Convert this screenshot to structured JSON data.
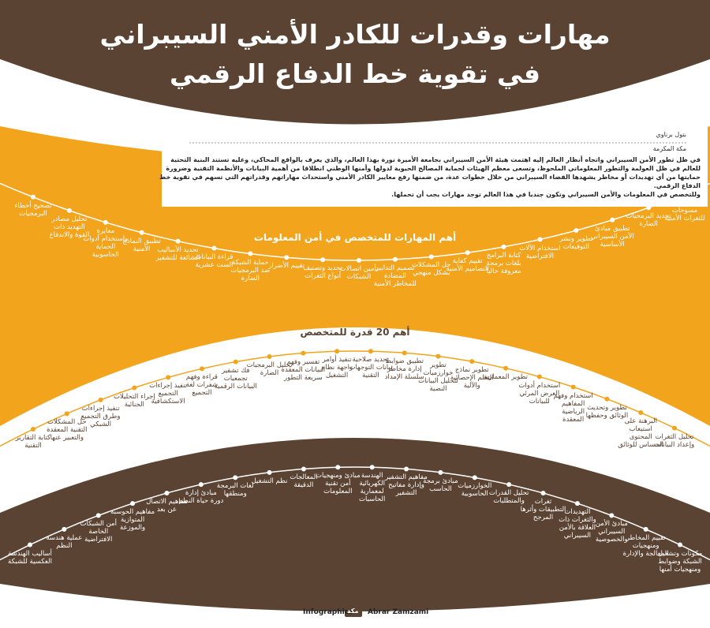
{
  "header": {
    "title_lines": [
      "مهارات وقدرات للكادر الأمني السيبراني",
      "في تقوية خط الدفاع الرقمي"
    ]
  },
  "byline": {
    "author": "بتول برناوي",
    "location": "مكة المكرمة"
  },
  "intro": [
    "في ظل تطور الأمن السيبراني واتجاه أنظار العالم إليه اهتمت هيئة الأمن السيبراني بجامعة الأميرة نورة بهذا العالم، والذي يعرف بالواقع المحاكي، وعليه تستند البنية التحتية للعالم في ظل العولمة والتطور المعلوماتي الملحوظ، وتسعى معظم الهيئات لحماية المصالح الحيوية لدولها وأمنها الوطني انطلاقا من أهمية البيانات والأنظمة التقنية وضرورة حمايتها من أي تهديدات أو مخاطر يشهدها الفضاء السيبراني من خلال خطوات عدة، من ضمنها رفع معايير الكادر الأمني واستحداث مهاراتهم وقدراتهم التي تسهم في تقوية خط الدفاع الرقمي.",
    "وللتخصص في المعلومات والأمن السيبراني وتكون جنديا في هذا العالم توجد مهارات يجب أن تحملها."
  ],
  "sections": [
    {
      "title": "أهم المهارات للمتخصص في أمن المعلومات",
      "items": [
        "كفاءة أداء مسوحات للثغرات الأمنية",
        "تحديد البرمجيات الضارة",
        "تطبيق مبادئ الأمن السيبراني الأساسية",
        "تطوير ونشر التوقيعات",
        "استخدام الآلات الافتراضية",
        "كتابة البرامج بلغات برمجة معروفة حاليا",
        "تقييم كفاية التصاميم الأمنية",
        "حل المشكلات بشكل منهجي",
        "تصميم التدابير المضادة للمخاطر الأمنية",
        "تأمين اتصالات الشبكات",
        "تحديد وتصنيف أنواع الثغرات",
        "تقييم الأضرار",
        "حماية الشبكة ضد البرمجيات الضارة",
        "قراءة البيانات الست عشرية",
        "تحديد الأساليب الشائعة للتشفير",
        "تطبيق النماذج الأمنية",
        "معايرة واستخدام أدوات الحماية الحاسوبية",
        "تحليل مصادر التهديد ذات القوة والاندفاع",
        "تصحيح أخطاء البرمجيات"
      ]
    },
    {
      "title": "أهم 20 قدرة للمتخصص",
      "items": [
        "تحليل الثغرات وإعداد البيانات",
        "البرهنة على استيعاب المحتوى الحساس للوثائق",
        "تطوير وتحديث الوثائق وحفظها",
        "استخدام وفهم المفاهيم الرياضية المعقدة",
        "استخدام أدوات العرض المرئي للبيانات",
        "تطوير المعمارية",
        "تطوير نماذج التعلم الإحصائية والآلية",
        "تطوير خوارزميات لتحليل البيانات النصية",
        "تطبيق ضوابط إدارة مخاطر سلسلة الإمداد",
        "تحديد صلاحية بيانات التوجهات التقنية",
        "تنفيذ أوامر واجهة نظام التشغيل",
        "تفسير وفهم البيانات المعقدة سريعة التطور",
        "تحليل البرمجيات الضارة",
        "فك تشفير تجمعيات البيانات الرقمية",
        "قراءة وفهم شفرات لغة التجميع",
        "تنفيذ إجراءات التجميع الاستكشافية",
        "إجراء التحليلات الجنائية",
        "تنفيذ إجراءات وطرق التجميع الشبكي",
        "حل المشكلات التقنية المعقدة والتعبير عنها",
        "كتابة التقارير التقنية"
      ]
    },
    {
      "title": "أهم 20 معرفة للمتخصص",
      "items": [
        "مكونات وتشغيل الشبكة وضوابط ومنهجيات أمنها",
        "تقييم المخاطر ومنهجيات المعالجة والإدارة",
        "مبادئ الأمن السيبراني والخصوصية",
        "التهديدات والثغرات ذات العلاقة بالأمن السيبراني",
        "ثغرات التطبيقات وأثرها المرجح",
        "تحليل القدرات والمتطلبات",
        "الخوارزميات الحاسوبية",
        "مبادئ برمجة الحاسب",
        "مفاهيم التشفير وإدارة مفاتيح التشفير",
        "الهندسة الكهربائية لمعمارية الحاسبات",
        "مبادئ ومنهجيات أمن تقنية المعلومات",
        "المعالجات الدقيقة",
        "نظم التشغيل",
        "لغات البرمجة ومنطقها",
        "مبادئ إدارة دورة حياة النظم",
        "مفاهيم الاتصال عن بعد",
        "مفاهيم الحوسبة المتوازية والموزعة",
        "أمن الشبكات الخاصة الافتراضية",
        "عملية هندسة النظم",
        "أساليب الهندسة العكسية للشبكة"
      ]
    }
  ],
  "footer": {
    "label": "Infographics",
    "logo": "مكة",
    "designer": "Abrar Zamzami"
  }
}
